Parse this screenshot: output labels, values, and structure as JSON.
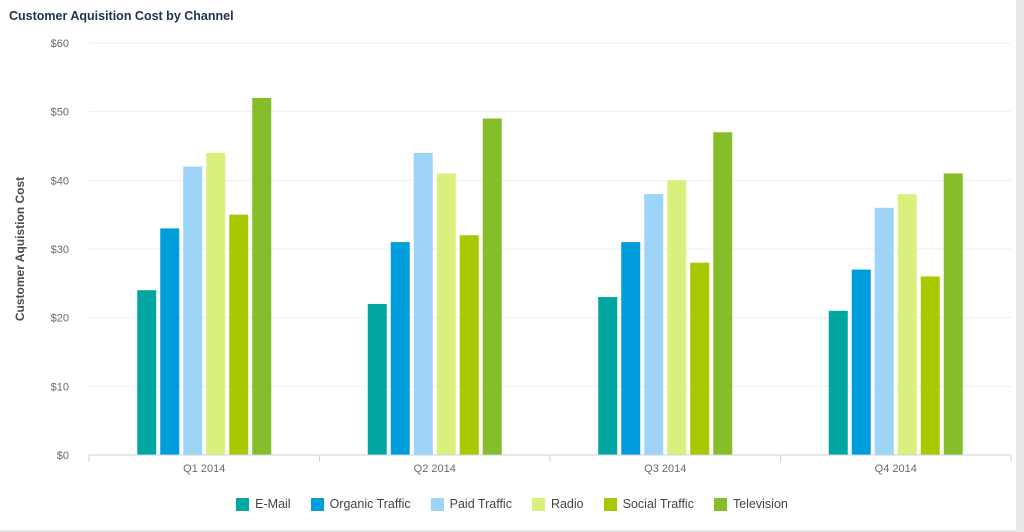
{
  "chart_data": {
    "type": "bar",
    "title": "Customer Aquisition Cost by Channel",
    "xlabel": "",
    "ylabel": "Customer Aquistion Cost",
    "ylim": [
      0,
      60
    ],
    "yticks": [
      "$0",
      "$10",
      "$20",
      "$30",
      "$40",
      "$50",
      "$60"
    ],
    "categories": [
      "Q1 2014",
      "Q2 2014",
      "Q3 2014",
      "Q4 2014"
    ],
    "series": [
      {
        "name": "E-Mail",
        "color": "#00a7a0",
        "values": [
          24,
          22,
          23,
          21
        ]
      },
      {
        "name": "Organic Traffic",
        "color": "#009ddc",
        "values": [
          33,
          31,
          31,
          27
        ]
      },
      {
        "name": "Paid Traffic",
        "color": "#9dd4f8",
        "values": [
          42,
          44,
          38,
          36
        ]
      },
      {
        "name": "Radio",
        "color": "#daf07c",
        "values": [
          44,
          41,
          40,
          38
        ]
      },
      {
        "name": "Social Traffic",
        "color": "#a8c800",
        "values": [
          35,
          32,
          28,
          26
        ]
      },
      {
        "name": "Television",
        "color": "#86bd2b",
        "values": [
          52,
          49,
          47,
          41
        ]
      }
    ],
    "grid": true,
    "legend": "bottom-center"
  }
}
